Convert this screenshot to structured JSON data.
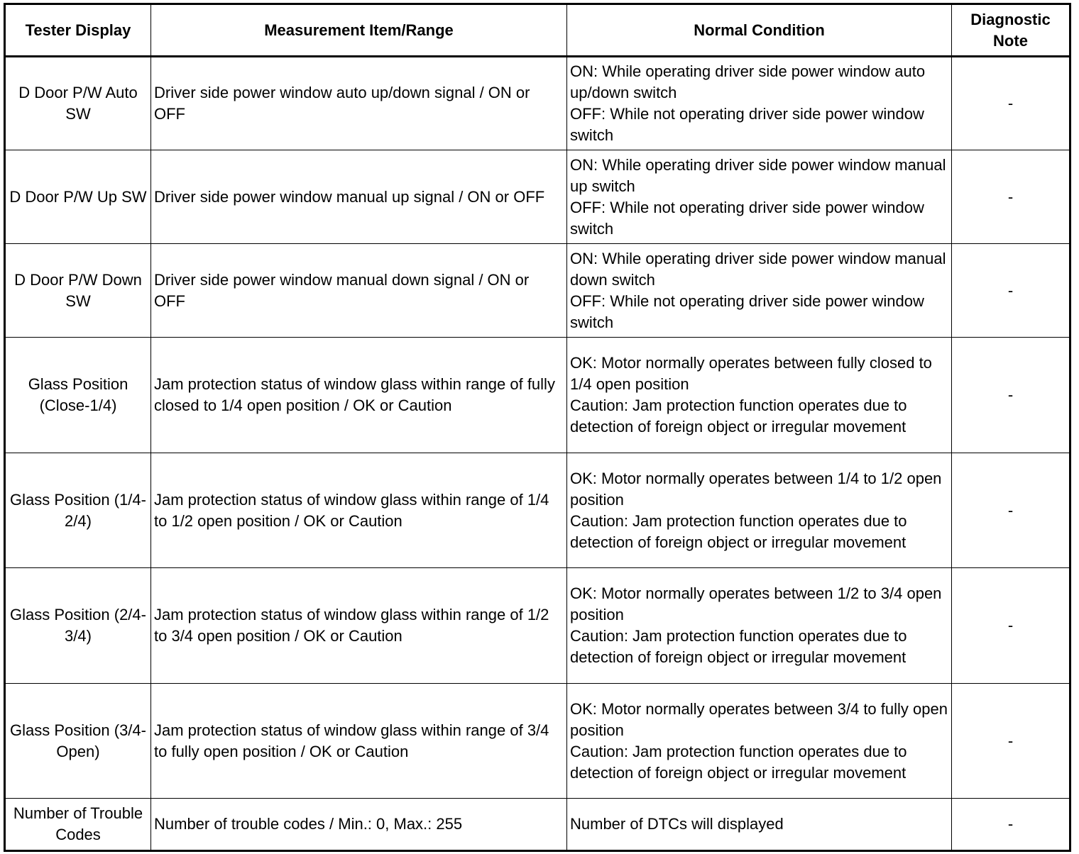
{
  "table": {
    "headers": [
      "Tester Display",
      "Measurement Item/Range",
      "Normal Condition",
      "Diagnostic Note"
    ],
    "rows": [
      {
        "tester_display": "D Door P/W Auto SW",
        "measurement": "Driver side power window auto up/down signal / ON or OFF",
        "normal": [
          "ON: While operating driver side power window auto up/down switch",
          "OFF: While not operating driver side power window switch"
        ],
        "note": "-"
      },
      {
        "tester_display": "D Door P/W Up SW",
        "measurement": "Driver side power window manual up signal / ON or OFF",
        "normal": [
          "ON: While operating driver side power window manual up switch",
          "OFF: While not operating driver side power window switch"
        ],
        "note": "-"
      },
      {
        "tester_display": "D Door P/W Down SW",
        "measurement": "Driver side power window manual down signal / ON or OFF",
        "normal": [
          "ON: While operating driver side power window manual down switch",
          "OFF: While not operating driver side power window switch"
        ],
        "note": "-"
      },
      {
        "tester_display": "Glass Position (Close-1/4)",
        "measurement": "Jam protection status of window glass within range of fully closed to 1/4 open position / OK or Caution",
        "normal": [
          "OK: Motor normally operates between fully closed to 1/4 open position",
          "Caution: Jam protection function operates due to detection of foreign object or irregular movement"
        ],
        "note": "-"
      },
      {
        "tester_display": "Glass Position (1/4-2/4)",
        "measurement": "Jam protection status of window glass within range of 1/4 to 1/2 open position / OK or Caution",
        "normal": [
          "OK: Motor normally operates between 1/4 to 1/2 open position",
          "Caution: Jam protection function operates due to detection of foreign object or irregular movement"
        ],
        "note": "-"
      },
      {
        "tester_display": "Glass Position (2/4-3/4)",
        "measurement": "Jam protection status of window glass within range of 1/2 to 3/4 open position / OK or Caution",
        "normal": [
          "OK: Motor normally operates between 1/2 to 3/4 open position",
          "Caution: Jam protection function operates due to detection of foreign object or irregular movement"
        ],
        "note": "-"
      },
      {
        "tester_display": "Glass Position (3/4-Open)",
        "measurement": "Jam protection status of window glass within range of 3/4 to fully open position / OK or Caution",
        "normal": [
          "OK: Motor normally operates between 3/4 to fully open position",
          "Caution: Jam protection function operates due to detection of foreign object or irregular movement"
        ],
        "note": "-"
      },
      {
        "tester_display": "Number of Trouble Codes",
        "measurement": "Number of trouble codes / Min.: 0, Max.: 255",
        "normal": [
          "Number of DTCs will displayed"
        ],
        "note": "-"
      }
    ]
  }
}
